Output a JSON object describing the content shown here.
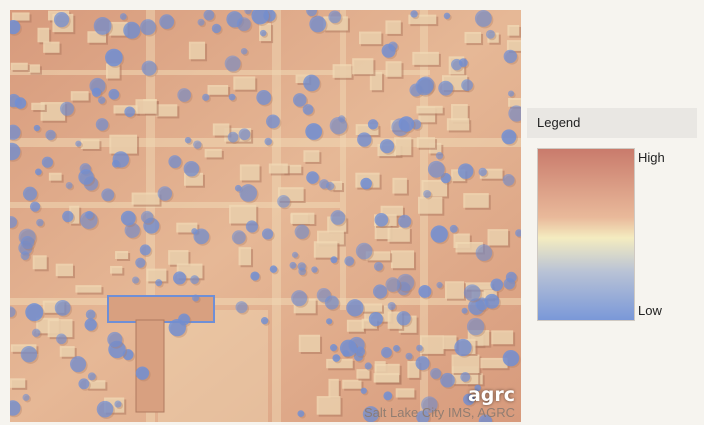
{
  "map": {
    "attribution": "Salt Lake City IMS, AGRC",
    "logo_text": "agrc",
    "colors": {
      "base_high": "#d79a7c",
      "base_mid": "#e6b896",
      "canopy_low": "#6f8fd6",
      "highlight": "#f0d8b4",
      "shadow": "#b07a60"
    }
  },
  "legend": {
    "title": "Legend",
    "high_label": "High",
    "low_label": "Low",
    "ramp_colors": [
      "#c97b6c",
      "#e9b99a",
      "#f4ecc0",
      "#b8c2d6",
      "#7a98d8"
    ]
  }
}
